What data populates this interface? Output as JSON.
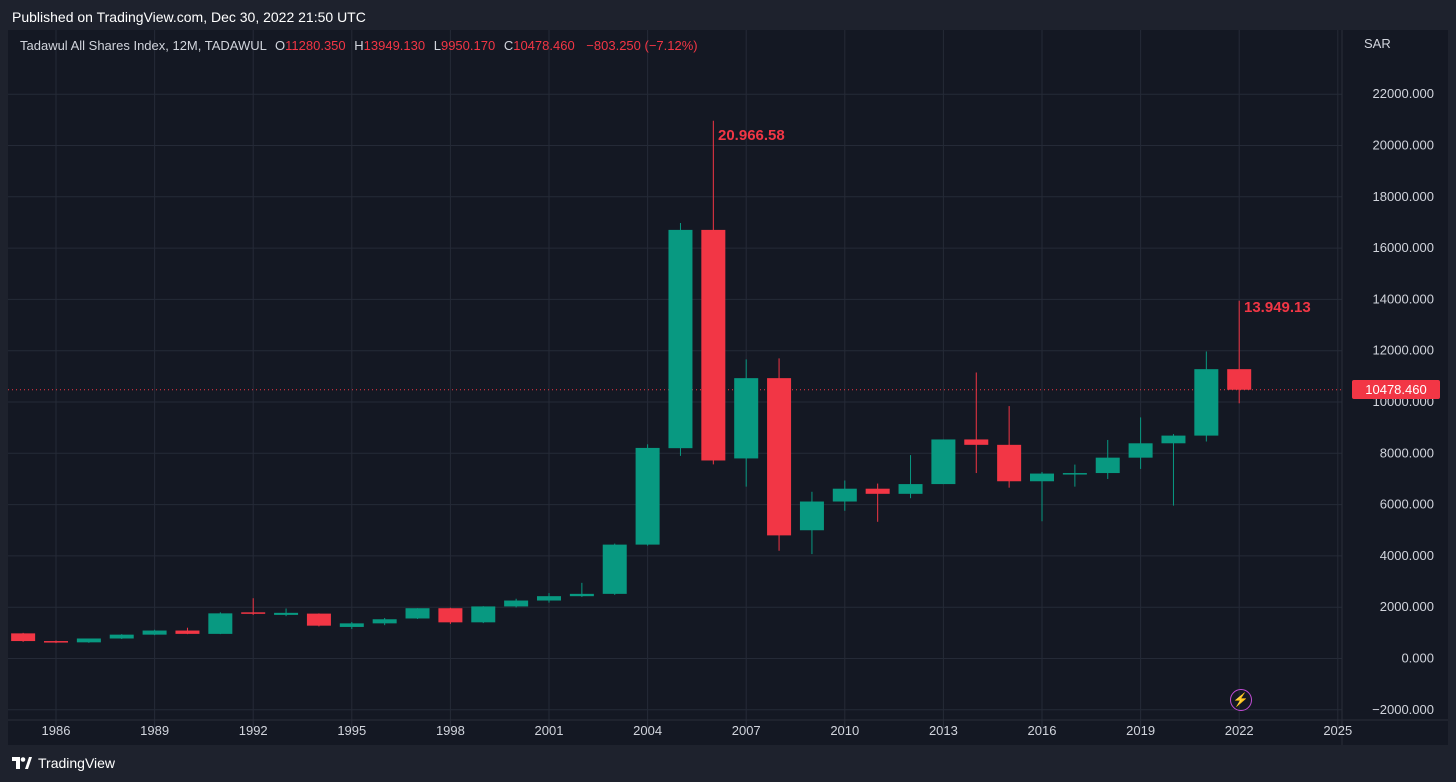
{
  "header": {
    "published": "Published on TradingView.com, Dec 30, 2022 21:50 UTC"
  },
  "footer": {
    "brand": "TradingView"
  },
  "legend": {
    "symbol": "Tadawul All Shares Index, 12M, TADAWUL",
    "o_label": "O",
    "o_value": "11280.350",
    "h_label": "H",
    "h_value": "13949.130",
    "l_label": "L",
    "l_value": "9950.170",
    "c_label": "C",
    "c_value": "10478.460",
    "change": "−803.250 (−7.12%)"
  },
  "axis": {
    "unit": "SAR"
  },
  "price_tag": "10478.460",
  "annotations": {
    "high_2006": "20.966.58",
    "high_2022": "13.949.13"
  },
  "colors": {
    "up": "#089981",
    "down": "#f23645",
    "background": "#141823",
    "grid": "#252a37",
    "text": "#d1d4dc"
  },
  "icons": {
    "logo": "tradingview-logo-icon",
    "alert": "lightning-icon"
  },
  "chart_data": {
    "type": "candlestick",
    "title": "Tadawul All Shares Index, 12M, TADAWUL",
    "ylabel": "SAR",
    "ylim": [
      -2000,
      24000
    ],
    "xlim": [
      1984.5,
      2025
    ],
    "y_ticks": [
      "−2000.000",
      "0.000",
      "2000.000",
      "4000.000",
      "6000.000",
      "8000.000",
      "10000.000",
      "12000.000",
      "14000.000",
      "16000.000",
      "18000.000",
      "20000.000",
      "22000.000"
    ],
    "y_tick_values": [
      -2000,
      0,
      2000,
      4000,
      6000,
      8000,
      10000,
      12000,
      14000,
      16000,
      18000,
      20000,
      22000
    ],
    "x_ticks": [
      "1986",
      "1989",
      "1992",
      "1995",
      "1998",
      "2001",
      "2004",
      "2007",
      "2010",
      "2013",
      "2016",
      "2019",
      "2022",
      "2025"
    ],
    "x_tick_values": [
      1986,
      1989,
      1992,
      1995,
      1998,
      2001,
      2004,
      2007,
      2010,
      2013,
      2016,
      2019,
      2022,
      2025
    ],
    "grid": true,
    "last_price": 10478.46,
    "candles": [
      {
        "year": 1985,
        "o": 980,
        "h": 1000,
        "l": 650,
        "c": 680
      },
      {
        "year": 1986,
        "o": 680,
        "h": 700,
        "l": 600,
        "c": 630
      },
      {
        "year": 1987,
        "o": 630,
        "h": 780,
        "l": 610,
        "c": 780
      },
      {
        "year": 1988,
        "o": 780,
        "h": 950,
        "l": 760,
        "c": 930
      },
      {
        "year": 1989,
        "o": 930,
        "h": 1120,
        "l": 910,
        "c": 1090
      },
      {
        "year": 1990,
        "o": 1090,
        "h": 1200,
        "l": 950,
        "c": 960
      },
      {
        "year": 1991,
        "o": 960,
        "h": 1800,
        "l": 950,
        "c": 1760
      },
      {
        "year": 1992,
        "o": 1800,
        "h": 2350,
        "l": 1700,
        "c": 1750
      },
      {
        "year": 1993,
        "o": 1700,
        "h": 1950,
        "l": 1650,
        "c": 1780
      },
      {
        "year": 1994,
        "o": 1750,
        "h": 1760,
        "l": 1250,
        "c": 1280
      },
      {
        "year": 1995,
        "o": 1230,
        "h": 1420,
        "l": 1150,
        "c": 1370
      },
      {
        "year": 1996,
        "o": 1370,
        "h": 1580,
        "l": 1300,
        "c": 1530
      },
      {
        "year": 1997,
        "o": 1560,
        "h": 1960,
        "l": 1540,
        "c": 1960
      },
      {
        "year": 1998,
        "o": 1960,
        "h": 1980,
        "l": 1350,
        "c": 1410
      },
      {
        "year": 1999,
        "o": 1410,
        "h": 2040,
        "l": 1380,
        "c": 2030
      },
      {
        "year": 2000,
        "o": 2030,
        "h": 2330,
        "l": 1990,
        "c": 2260
      },
      {
        "year": 2001,
        "o": 2260,
        "h": 2550,
        "l": 2180,
        "c": 2430
      },
      {
        "year": 2002,
        "o": 2430,
        "h": 2950,
        "l": 2400,
        "c": 2520
      },
      {
        "year": 2003,
        "o": 2520,
        "h": 4480,
        "l": 2480,
        "c": 4440
      },
      {
        "year": 2004,
        "o": 4440,
        "h": 8350,
        "l": 4400,
        "c": 8210
      },
      {
        "year": 2005,
        "o": 8200,
        "h": 16980,
        "l": 7900,
        "c": 16710
      },
      {
        "year": 2006,
        "o": 16710,
        "h": 20966.58,
        "l": 7570,
        "c": 7720
      },
      {
        "year": 2007,
        "o": 7800,
        "h": 11660,
        "l": 6700,
        "c": 10930
      },
      {
        "year": 2008,
        "o": 10930,
        "h": 11700,
        "l": 4200,
        "c": 4800
      },
      {
        "year": 2009,
        "o": 5000,
        "h": 6500,
        "l": 4070,
        "c": 6120
      },
      {
        "year": 2010,
        "o": 6120,
        "h": 6940,
        "l": 5760,
        "c": 6620
      },
      {
        "year": 2011,
        "o": 6620,
        "h": 6820,
        "l": 5330,
        "c": 6420
      },
      {
        "year": 2012,
        "o": 6420,
        "h": 7930,
        "l": 6250,
        "c": 6800
      },
      {
        "year": 2013,
        "o": 6800,
        "h": 8540,
        "l": 6800,
        "c": 8540
      },
      {
        "year": 2014,
        "o": 8540,
        "h": 11150,
        "l": 7230,
        "c": 8330
      },
      {
        "year": 2015,
        "o": 8330,
        "h": 9840,
        "l": 6660,
        "c": 6910
      },
      {
        "year": 2016,
        "o": 6910,
        "h": 7270,
        "l": 5350,
        "c": 7210
      },
      {
        "year": 2017,
        "o": 7210,
        "h": 7560,
        "l": 6700,
        "c": 7230
      },
      {
        "year": 2018,
        "o": 7230,
        "h": 8520,
        "l": 7000,
        "c": 7830
      },
      {
        "year": 2019,
        "o": 7830,
        "h": 9400,
        "l": 7390,
        "c": 8390
      },
      {
        "year": 2020,
        "o": 8390,
        "h": 8750,
        "l": 5960,
        "c": 8690
      },
      {
        "year": 2021,
        "o": 8690,
        "h": 11970,
        "l": 8460,
        "c": 11280
      },
      {
        "year": 2022,
        "o": 11280.35,
        "h": 13949.13,
        "l": 9950.17,
        "c": 10478.46
      }
    ]
  }
}
